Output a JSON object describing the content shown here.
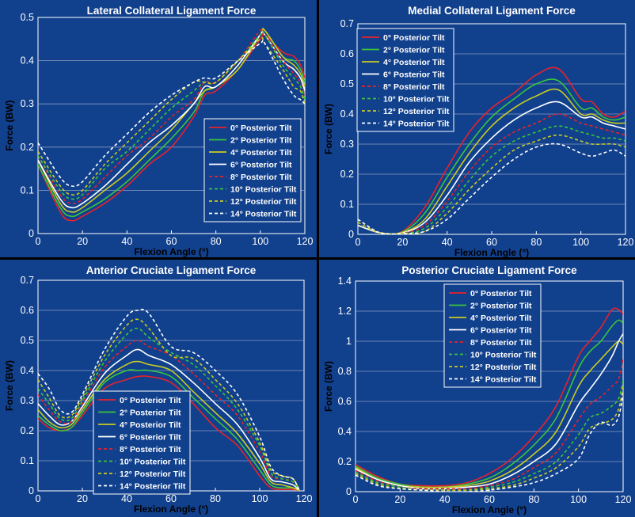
{
  "figure": "knee ligament forces vs posterior tilt",
  "series_style": {
    "names": [
      "0° Posterior Tilt",
      "2° Posterior Tilt",
      "4° Posterior Tilt",
      "6° Posterior Tilt",
      "8° Posterior Tilt",
      "10° Posterior Tilt",
      "12° Posterior Tilt",
      "14° Posterior Tilt"
    ],
    "colors": [
      "#e8222a",
      "#3cc43c",
      "#c8cc22",
      "#ffffff",
      "#e8222a",
      "#3cc43c",
      "#c8cc22",
      "#ffffff"
    ],
    "dashed": [
      false,
      false,
      false,
      false,
      true,
      true,
      true,
      true
    ]
  },
  "chart_data": [
    {
      "type": "line",
      "title": "Lateral Collateral Ligament Force",
      "xlabel": "Flexion Angle (°)",
      "ylabel": "Force (BW)",
      "xlim": [
        0,
        120
      ],
      "ylim": [
        0,
        0.5
      ],
      "xticks": [
        0,
        20,
        40,
        60,
        80,
        100,
        120
      ],
      "yticks": [
        0,
        0.1,
        0.2,
        0.3,
        0.4,
        0.5
      ],
      "ytick_labels": [
        "0",
        "0.1",
        "0.2",
        "0.3",
        "0.4",
        "0.5"
      ],
      "grid": true,
      "legend_position": "lower-right",
      "x": [
        0,
        10,
        15,
        20,
        30,
        40,
        50,
        60,
        70,
        75,
        80,
        90,
        100,
        102,
        110,
        115,
        118,
        120
      ],
      "series": [
        {
          "name": "0° Posterior Tilt",
          "values": [
            0.16,
            0.05,
            0.03,
            0.04,
            0.07,
            0.11,
            0.16,
            0.2,
            0.27,
            0.32,
            0.33,
            0.38,
            0.45,
            0.46,
            0.42,
            0.41,
            0.39,
            0.36
          ]
        },
        {
          "name": "2° Posterior Tilt",
          "values": [
            0.16,
            0.06,
            0.04,
            0.05,
            0.08,
            0.12,
            0.17,
            0.22,
            0.28,
            0.33,
            0.34,
            0.38,
            0.46,
            0.47,
            0.41,
            0.4,
            0.38,
            0.35
          ]
        },
        {
          "name": "4° Posterior Tilt",
          "values": [
            0.17,
            0.07,
            0.05,
            0.06,
            0.1,
            0.14,
            0.19,
            0.24,
            0.3,
            0.33,
            0.34,
            0.38,
            0.46,
            0.47,
            0.41,
            0.39,
            0.37,
            0.34
          ]
        },
        {
          "name": "6° Posterior Tilt",
          "values": [
            0.17,
            0.08,
            0.06,
            0.07,
            0.11,
            0.16,
            0.21,
            0.25,
            0.3,
            0.34,
            0.34,
            0.39,
            0.46,
            0.46,
            0.4,
            0.38,
            0.36,
            0.33
          ]
        },
        {
          "name": "8° Posterior Tilt",
          "values": [
            0.18,
            0.09,
            0.07,
            0.08,
            0.13,
            0.18,
            0.22,
            0.27,
            0.31,
            0.35,
            0.35,
            0.4,
            0.47,
            0.46,
            0.4,
            0.37,
            0.35,
            0.32
          ]
        },
        {
          "name": "10° Posterior Tilt",
          "values": [
            0.18,
            0.1,
            0.08,
            0.09,
            0.15,
            0.19,
            0.24,
            0.29,
            0.33,
            0.35,
            0.35,
            0.4,
            0.46,
            0.46,
            0.39,
            0.36,
            0.34,
            0.31
          ]
        },
        {
          "name": "12° Posterior Tilt",
          "values": [
            0.19,
            0.11,
            0.09,
            0.1,
            0.16,
            0.21,
            0.26,
            0.31,
            0.35,
            0.35,
            0.35,
            0.4,
            0.45,
            0.44,
            0.38,
            0.34,
            0.33,
            0.3
          ]
        },
        {
          "name": "14° Posterior Tilt",
          "values": [
            0.21,
            0.13,
            0.11,
            0.12,
            0.18,
            0.23,
            0.28,
            0.32,
            0.35,
            0.36,
            0.36,
            0.4,
            0.44,
            0.44,
            0.36,
            0.32,
            0.31,
            0.3
          ]
        }
      ]
    },
    {
      "type": "line",
      "title": "Medial Collateral Ligament Force",
      "xlabel": "Flexion Angle (°)",
      "ylabel": "Force (BW)",
      "xlim": [
        0,
        120
      ],
      "ylim": [
        0,
        0.7
      ],
      "xticks": [
        0,
        20,
        40,
        60,
        80,
        100,
        120
      ],
      "yticks": [
        0,
        0.1,
        0.2,
        0.3,
        0.4,
        0.5,
        0.6,
        0.7
      ],
      "ytick_labels": [
        "0",
        "0.1",
        "0.2",
        "0.3",
        "0.4",
        "0.5",
        "0.6",
        "0.7"
      ],
      "grid": true,
      "legend_position": "top-left",
      "x": [
        0,
        10,
        20,
        30,
        40,
        50,
        60,
        70,
        80,
        90,
        100,
        105,
        110,
        115,
        120
      ],
      "series": [
        {
          "name": "0° Posterior Tilt",
          "values": [
            0.03,
            0.005,
            0.01,
            0.09,
            0.22,
            0.34,
            0.42,
            0.47,
            0.53,
            0.55,
            0.45,
            0.44,
            0.4,
            0.39,
            0.41
          ]
        },
        {
          "name": "2° Posterior Tilt",
          "values": [
            0.03,
            0.005,
            0.008,
            0.07,
            0.19,
            0.3,
            0.39,
            0.45,
            0.5,
            0.51,
            0.42,
            0.42,
            0.39,
            0.38,
            0.39
          ]
        },
        {
          "name": "4° Posterior Tilt",
          "values": [
            0.03,
            0.005,
            0.006,
            0.05,
            0.16,
            0.27,
            0.36,
            0.42,
            0.46,
            0.48,
            0.4,
            0.4,
            0.38,
            0.37,
            0.37
          ]
        },
        {
          "name": "6° Posterior Tilt",
          "values": [
            0.03,
            0.005,
            0.005,
            0.04,
            0.13,
            0.24,
            0.32,
            0.38,
            0.42,
            0.44,
            0.39,
            0.39,
            0.37,
            0.36,
            0.35
          ]
        },
        {
          "name": "8° Posterior Tilt",
          "values": [
            0.04,
            0.005,
            0.004,
            0.03,
            0.11,
            0.21,
            0.29,
            0.34,
            0.37,
            0.4,
            0.37,
            0.36,
            0.35,
            0.34,
            0.33
          ]
        },
        {
          "name": "10° Posterior Tilt",
          "values": [
            0.04,
            0.005,
            0.003,
            0.02,
            0.09,
            0.18,
            0.26,
            0.31,
            0.34,
            0.36,
            0.34,
            0.33,
            0.32,
            0.32,
            0.31
          ]
        },
        {
          "name": "12° Posterior Tilt",
          "values": [
            0.04,
            0.005,
            0.002,
            0.01,
            0.07,
            0.15,
            0.22,
            0.28,
            0.31,
            0.33,
            0.31,
            0.3,
            0.3,
            0.3,
            0.29
          ]
        },
        {
          "name": "14° Posterior Tilt",
          "values": [
            0.05,
            0.005,
            0.002,
            0.01,
            0.05,
            0.12,
            0.19,
            0.25,
            0.29,
            0.3,
            0.27,
            0.26,
            0.27,
            0.28,
            0.26
          ]
        }
      ]
    },
    {
      "type": "line",
      "title": "Anterior Cruciate Ligament Force",
      "xlabel": "Flexion Angle (°)",
      "ylabel": "Force (BW)",
      "xlim": [
        0,
        120
      ],
      "ylim": [
        0,
        0.7
      ],
      "xticks": [
        0,
        20,
        40,
        60,
        80,
        100,
        120
      ],
      "yticks": [
        0,
        0.1,
        0.2,
        0.3,
        0.4,
        0.5,
        0.6,
        0.7
      ],
      "ytick_labels": [
        "0",
        "0.1",
        "0.2",
        "0.3",
        "0.4",
        "0.5",
        "0.6",
        "0.7"
      ],
      "grid": true,
      "legend_position": "lower-center",
      "x": [
        0,
        5,
        10,
        15,
        20,
        30,
        40,
        45,
        50,
        60,
        70,
        80,
        90,
        100,
        105,
        110,
        115,
        118
      ],
      "series": [
        {
          "name": "0° Posterior Tilt",
          "values": [
            0.24,
            0.21,
            0.2,
            0.21,
            0.25,
            0.34,
            0.37,
            0.38,
            0.38,
            0.36,
            0.29,
            0.21,
            0.15,
            0.05,
            0.01,
            0.005,
            0.005,
            0.0
          ]
        },
        {
          "name": "2° Posterior Tilt",
          "values": [
            0.25,
            0.22,
            0.2,
            0.21,
            0.26,
            0.36,
            0.4,
            0.4,
            0.4,
            0.38,
            0.31,
            0.24,
            0.17,
            0.07,
            0.02,
            0.01,
            0.01,
            0.0
          ]
        },
        {
          "name": "4° Posterior Tilt",
          "values": [
            0.27,
            0.23,
            0.21,
            0.22,
            0.27,
            0.37,
            0.42,
            0.43,
            0.42,
            0.4,
            0.33,
            0.26,
            0.19,
            0.09,
            0.03,
            0.02,
            0.01,
            0.0
          ]
        },
        {
          "name": "6° Posterior Tilt",
          "values": [
            0.29,
            0.25,
            0.22,
            0.23,
            0.28,
            0.39,
            0.45,
            0.47,
            0.45,
            0.42,
            0.36,
            0.29,
            0.22,
            0.11,
            0.04,
            0.03,
            0.02,
            0.0
          ]
        },
        {
          "name": "8° Posterior Tilt",
          "values": [
            0.32,
            0.27,
            0.23,
            0.23,
            0.29,
            0.41,
            0.48,
            0.5,
            0.48,
            0.45,
            0.39,
            0.32,
            0.25,
            0.13,
            0.05,
            0.04,
            0.03,
            0.0
          ]
        },
        {
          "name": "10° Posterior Tilt",
          "values": [
            0.34,
            0.29,
            0.24,
            0.24,
            0.3,
            0.43,
            0.52,
            0.54,
            0.51,
            0.46,
            0.42,
            0.35,
            0.27,
            0.15,
            0.06,
            0.04,
            0.03,
            0.0
          ]
        },
        {
          "name": "12° Posterior Tilt",
          "values": [
            0.37,
            0.31,
            0.25,
            0.25,
            0.31,
            0.45,
            0.55,
            0.57,
            0.54,
            0.45,
            0.44,
            0.37,
            0.29,
            0.16,
            0.07,
            0.05,
            0.04,
            0.0
          ]
        },
        {
          "name": "14° Posterior Tilt",
          "values": [
            0.39,
            0.34,
            0.27,
            0.26,
            0.32,
            0.47,
            0.58,
            0.6,
            0.59,
            0.48,
            0.46,
            0.4,
            0.32,
            0.18,
            0.08,
            0.05,
            0.04,
            0.0
          ]
        }
      ]
    },
    {
      "type": "line",
      "title": "Posterior Cruciate Ligament Force",
      "xlabel": "Flexion Angle (°)",
      "ylabel": "Force (BW)",
      "xlim": [
        0,
        120
      ],
      "ylim": [
        0,
        1.4
      ],
      "xticks": [
        0,
        20,
        40,
        60,
        80,
        100,
        120
      ],
      "yticks": [
        0,
        0.2,
        0.4,
        0.6,
        0.8,
        1.0,
        1.2,
        1.4
      ],
      "ytick_labels": [
        "0",
        "0.2",
        "0.4",
        "0.6",
        "0.8",
        "1",
        "1.2",
        "1.4"
      ],
      "grid": true,
      "legend_position": "top-center",
      "x": [
        0,
        10,
        20,
        30,
        40,
        50,
        60,
        70,
        80,
        90,
        100,
        105,
        110,
        115,
        118,
        120
      ],
      "series": [
        {
          "name": "0° Posterior Tilt",
          "values": [
            0.18,
            0.1,
            0.05,
            0.04,
            0.04,
            0.06,
            0.12,
            0.22,
            0.37,
            0.57,
            0.9,
            1.0,
            1.09,
            1.21,
            1.21,
            1.18
          ]
        },
        {
          "name": "2° Posterior Tilt",
          "values": [
            0.17,
            0.09,
            0.05,
            0.03,
            0.03,
            0.05,
            0.09,
            0.18,
            0.31,
            0.49,
            0.82,
            0.93,
            1.0,
            1.1,
            1.14,
            1.12
          ]
        },
        {
          "name": "4° Posterior Tilt",
          "values": [
            0.16,
            0.08,
            0.04,
            0.03,
            0.03,
            0.04,
            0.07,
            0.14,
            0.25,
            0.4,
            0.7,
            0.8,
            0.88,
            0.96,
            1.0,
            0.98
          ]
        },
        {
          "name": "6° Posterior Tilt",
          "values": [
            0.15,
            0.08,
            0.04,
            0.02,
            0.02,
            0.03,
            0.05,
            0.11,
            0.2,
            0.32,
            0.58,
            0.68,
            0.78,
            0.9,
            1.0,
            1.05
          ]
        },
        {
          "name": "8° Posterior Tilt",
          "values": [
            0.14,
            0.07,
            0.03,
            0.02,
            0.02,
            0.02,
            0.04,
            0.08,
            0.16,
            0.26,
            0.48,
            0.58,
            0.63,
            0.7,
            0.75,
            0.88
          ]
        },
        {
          "name": "10° Posterior Tilt",
          "values": [
            0.13,
            0.06,
            0.03,
            0.01,
            0.01,
            0.01,
            0.03,
            0.06,
            0.12,
            0.2,
            0.38,
            0.49,
            0.52,
            0.57,
            0.62,
            0.74
          ]
        },
        {
          "name": "12° Posterior Tilt",
          "values": [
            0.12,
            0.05,
            0.02,
            0.01,
            0.01,
            0.01,
            0.02,
            0.04,
            0.09,
            0.16,
            0.3,
            0.42,
            0.45,
            0.48,
            0.55,
            0.7
          ]
        },
        {
          "name": "14° Posterior Tilt",
          "values": [
            0.11,
            0.04,
            0.02,
            0.01,
            0.0,
            0.0,
            0.01,
            0.03,
            0.06,
            0.12,
            0.22,
            0.38,
            0.46,
            0.44,
            0.5,
            0.65
          ]
        }
      ]
    }
  ]
}
